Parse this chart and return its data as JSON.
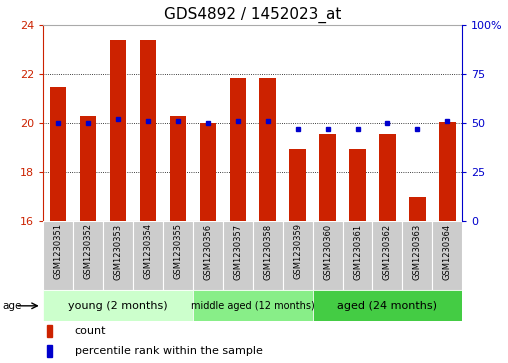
{
  "title": "GDS4892 / 1452023_at",
  "samples": [
    "GSM1230351",
    "GSM1230352",
    "GSM1230353",
    "GSM1230354",
    "GSM1230355",
    "GSM1230356",
    "GSM1230357",
    "GSM1230358",
    "GSM1230359",
    "GSM1230360",
    "GSM1230361",
    "GSM1230362",
    "GSM1230363",
    "GSM1230364"
  ],
  "count_values": [
    21.5,
    20.3,
    23.4,
    23.4,
    20.3,
    20.0,
    21.85,
    21.85,
    18.95,
    19.55,
    18.95,
    19.55,
    17.0,
    20.05
  ],
  "percentile_values": [
    50,
    50,
    52,
    51,
    51,
    50,
    51,
    51,
    47,
    47,
    47,
    50,
    47,
    51
  ],
  "ylim_left": [
    16,
    24
  ],
  "ylim_right": [
    0,
    100
  ],
  "yticks_left": [
    16,
    18,
    20,
    22,
    24
  ],
  "yticks_right": [
    0,
    25,
    50,
    75,
    100
  ],
  "ytick_labels_right": [
    "0",
    "25",
    "50",
    "75",
    "100%"
  ],
  "bar_color": "#cc2200",
  "dot_color": "#0000cc",
  "grid_color": "#000000",
  "groups": [
    {
      "label": "young (2 months)",
      "start": 0,
      "end": 5,
      "color": "#ccffcc"
    },
    {
      "label": "middle aged (12 months)",
      "start": 5,
      "end": 9,
      "color": "#88ee88"
    },
    {
      "label": "aged (24 months)",
      "start": 9,
      "end": 14,
      "color": "#44cc44"
    }
  ],
  "age_label": "age",
  "legend_count_label": "count",
  "legend_percentile_label": "percentile rank within the sample",
  "background_color": "#ffffff",
  "xticklabel_bg_color": "#cccccc",
  "xticklabel_border_color": "#ffffff",
  "title_fontsize": 11,
  "tick_fontsize": 8,
  "sample_fontsize": 6
}
